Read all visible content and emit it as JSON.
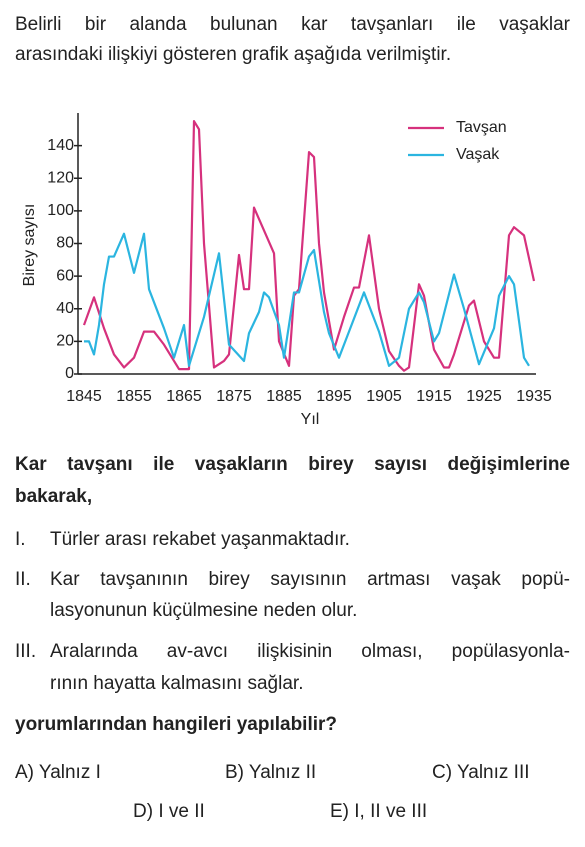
{
  "intro": [
    "Belirli bir alanda bulunan kar tavşanları ile vaşaklar",
    "arasındaki ilişkiyi gösteren grafik aşağıda verilmiştir."
  ],
  "chart_data": {
    "type": "line",
    "x_label": "Yıl",
    "y_label": "Birey sayısı",
    "xlim": [
      1845,
      1935
    ],
    "xticks": [
      1845,
      1855,
      1865,
      1875,
      1885,
      1895,
      1905,
      1915,
      1925,
      1935
    ],
    "ylim": [
      0,
      160
    ],
    "yticks": [
      0,
      20,
      40,
      60,
      80,
      100,
      120,
      140
    ],
    "legend": "top-right",
    "series": [
      {
        "name": "Tavşan",
        "color": "#d6317d",
        "x": [
          1845,
          1847,
          1849,
          1851,
          1853,
          1855,
          1857,
          1859,
          1861,
          1863,
          1864,
          1866,
          1867,
          1868,
          1869,
          1871,
          1873,
          1874,
          1876,
          1877,
          1878,
          1879,
          1881,
          1883,
          1884,
          1886,
          1887,
          1888,
          1890,
          1891,
          1892,
          1893,
          1895,
          1897,
          1899,
          1900,
          1902,
          1904,
          1906,
          1908,
          1909,
          1910,
          1912,
          1913,
          1915,
          1917,
          1918,
          1919,
          1922,
          1923,
          1925,
          1927,
          1928,
          1930,
          1931,
          1933,
          1935
        ],
        "values": [
          30,
          47,
          28,
          12,
          4,
          10,
          26,
          26,
          18,
          8,
          3,
          3,
          155,
          150,
          80,
          4,
          8,
          12,
          73,
          52,
          52,
          102,
          88,
          74,
          20,
          5,
          48,
          52,
          136,
          133,
          80,
          50,
          15,
          35,
          53,
          53,
          85,
          40,
          14,
          5,
          2,
          4,
          55,
          48,
          15,
          4,
          4,
          12,
          42,
          45,
          20,
          10,
          10,
          85,
          90,
          85,
          57
        ]
      },
      {
        "name": "Vaşak",
        "color": "#2bb5e0",
        "x": [
          1845,
          1846,
          1847,
          1848,
          1849,
          1850,
          1851,
          1853,
          1855,
          1857,
          1858,
          1861,
          1863,
          1865,
          1866,
          1869,
          1872,
          1874,
          1877,
          1878,
          1880,
          1881,
          1882,
          1884,
          1885,
          1887,
          1888,
          1890,
          1891,
          1893,
          1894,
          1896,
          1898,
          1901,
          1904,
          1906,
          1908,
          1910,
          1912,
          1913,
          1915,
          1916,
          1919,
          1921,
          1924,
          1927,
          1928,
          1930,
          1931,
          1933,
          1934
        ],
        "values": [
          20,
          20,
          12,
          30,
          55,
          72,
          72,
          86,
          62,
          86,
          52,
          28,
          10,
          30,
          5,
          35,
          74,
          18,
          8,
          25,
          38,
          50,
          47,
          30,
          10,
          50,
          50,
          72,
          76,
          38,
          25,
          10,
          26,
          50,
          26,
          5,
          10,
          40,
          50,
          44,
          20,
          25,
          61,
          40,
          6,
          28,
          48,
          60,
          55,
          10,
          5
        ]
      }
    ]
  },
  "question": [
    "Kar tavşanı ile vaşakların birey sayısı değişimlerine",
    "bakarak,"
  ],
  "statements": [
    {
      "number": "I.",
      "lines": [
        "Türler arası rekabet yaşanmaktadır."
      ]
    },
    {
      "number": "II.",
      "lines": [
        "Kar tavşanının birey sayısının artması vaşak popü-",
        "lasyonunun küçülmesine neden olur."
      ]
    },
    {
      "number": "III.",
      "lines": [
        "Aralarında av-avcı ilişkisinin olması, popülasyonla-",
        "rının hayatta kalmasını sağlar."
      ]
    }
  ],
  "prompt": "yorumlarından hangileri yapılabilir?",
  "options": [
    "A) Yalnız I",
    "B) Yalnız II",
    "C) Yalnız III",
    "D) I ve II",
    "E) I, II ve III"
  ]
}
